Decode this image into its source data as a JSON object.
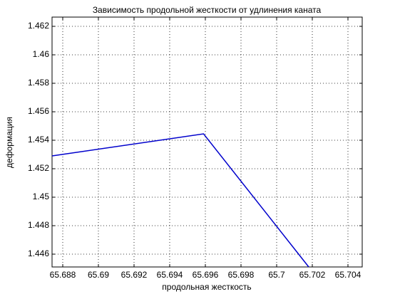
{
  "chart_data": {
    "type": "line",
    "title": "Зависимость продольной жесткости от удлинения каната",
    "xlabel": "продольная жесткость",
    "ylabel": "деформация",
    "x": [
      65.6874,
      65.6959,
      65.7018
    ],
    "values": [
      1.4529,
      1.45445,
      1.4451
    ],
    "color": "#0000cc",
    "xlim": [
      65.6874,
      65.7048
    ],
    "ylim": [
      1.4451,
      1.46265
    ],
    "xticks": [
      65.688,
      65.69,
      65.692,
      65.694,
      65.696,
      65.698,
      65.7,
      65.702,
      65.704
    ],
    "yticks": [
      1.446,
      1.448,
      1.45,
      1.452,
      1.454,
      1.456,
      1.458,
      1.46,
      1.462
    ],
    "grid": true
  }
}
